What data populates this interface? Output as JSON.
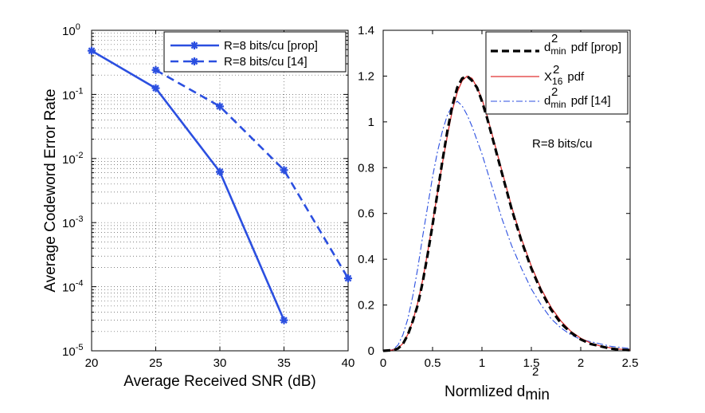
{
  "chart_data": [
    {
      "type": "line",
      "yscale": "log",
      "xlabel": "Average Received SNR (dB)",
      "ylabel": "Average Codeword Error Rate",
      "xlim": [
        20,
        40
      ],
      "ylim": [
        1e-05,
        1
      ],
      "xticks": [
        "20",
        "25",
        "30",
        "35",
        "40"
      ],
      "yticks": [
        {
          "base": "10",
          "exp": "0"
        },
        {
          "base": "10",
          "exp": "-1"
        },
        {
          "base": "10",
          "exp": "-2"
        },
        {
          "base": "10",
          "exp": "-3"
        },
        {
          "base": "10",
          "exp": "-4"
        },
        {
          "base": "10",
          "exp": "-5"
        }
      ],
      "grid": true,
      "legend_position": "top-right",
      "series": [
        {
          "name": "R=8 bits/cu [prop]",
          "style": "solid",
          "color": "#2b4fe0",
          "marker": "asterisk",
          "x": [
            20,
            25,
            30,
            35
          ],
          "y": [
            0.48,
            0.125,
            0.0062,
            3e-05
          ]
        },
        {
          "name": "R=8 bits/cu [14]",
          "style": "dashed",
          "color": "#2b4fe0",
          "marker": "asterisk",
          "x": [
            25,
            30,
            35,
            40
          ],
          "y": [
            0.24,
            0.065,
            0.0066,
            0.000135
          ]
        }
      ]
    },
    {
      "type": "line",
      "xlabel": {
        "prefix": "Normlized d",
        "sup": "2",
        "sub": "min"
      },
      "ylabel": "",
      "xlim": [
        0,
        2.5
      ],
      "ylim": [
        0,
        1.4
      ],
      "xticks": [
        "0",
        "0.5",
        "1",
        "1.5",
        "2",
        "2.5"
      ],
      "yticks": [
        "0",
        "0.2",
        "0.4",
        "0.6",
        "0.8",
        "1",
        "1.2",
        "1.4"
      ],
      "grid": false,
      "legend_position": "top-right",
      "annotation": "R=8 bits/cu",
      "series": [
        {
          "name": {
            "main": "d",
            "sup": "2",
            "sub": "min",
            "tail": "pdf [prop]"
          },
          "style": "dashed-thick",
          "color": "#000000",
          "x": [
            0,
            0.1,
            0.15,
            0.2,
            0.25,
            0.3,
            0.35,
            0.4,
            0.45,
            0.5,
            0.55,
            0.6,
            0.65,
            0.7,
            0.75,
            0.8,
            0.85,
            0.9,
            0.95,
            1.0,
            1.05,
            1.1,
            1.15,
            1.2,
            1.3,
            1.4,
            1.5,
            1.6,
            1.7,
            1.8,
            1.9,
            2.0,
            2.1,
            2.2,
            2.3,
            2.4,
            2.5
          ],
          "y": [
            0,
            0.003,
            0.01,
            0.03,
            0.07,
            0.13,
            0.2,
            0.3,
            0.42,
            0.55,
            0.69,
            0.83,
            0.96,
            1.07,
            1.15,
            1.19,
            1.2,
            1.18,
            1.15,
            1.09,
            1.02,
            0.94,
            0.86,
            0.78,
            0.62,
            0.48,
            0.36,
            0.26,
            0.18,
            0.12,
            0.08,
            0.05,
            0.03,
            0.02,
            0.01,
            0.005,
            0.003
          ]
        },
        {
          "name": {
            "main": "X",
            "sup": "2",
            "sub": "16",
            "tail": "pdf"
          },
          "style": "solid",
          "color": "#e03030",
          "x": [
            0,
            0.1,
            0.15,
            0.2,
            0.25,
            0.3,
            0.35,
            0.4,
            0.45,
            0.5,
            0.55,
            0.6,
            0.65,
            0.7,
            0.75,
            0.8,
            0.85,
            0.9,
            0.95,
            1.0,
            1.05,
            1.1,
            1.15,
            1.2,
            1.3,
            1.4,
            1.5,
            1.6,
            1.7,
            1.8,
            1.9,
            2.0,
            2.1,
            2.2,
            2.3,
            2.4,
            2.5
          ],
          "y": [
            0,
            0.004,
            0.012,
            0.032,
            0.072,
            0.13,
            0.21,
            0.31,
            0.43,
            0.56,
            0.69,
            0.82,
            0.94,
            1.05,
            1.13,
            1.18,
            1.2,
            1.19,
            1.15,
            1.1,
            1.03,
            0.95,
            0.87,
            0.79,
            0.63,
            0.49,
            0.37,
            0.27,
            0.19,
            0.13,
            0.085,
            0.055,
            0.034,
            0.021,
            0.013,
            0.007,
            0.004
          ]
        },
        {
          "name": {
            "main": "d",
            "sup": "2",
            "sub": "min",
            "tail": "pdf [14]"
          },
          "style": "dashdot",
          "color": "#2b4fe0",
          "x": [
            0,
            0.1,
            0.15,
            0.2,
            0.25,
            0.3,
            0.35,
            0.4,
            0.45,
            0.5,
            0.55,
            0.6,
            0.65,
            0.7,
            0.75,
            0.8,
            0.85,
            0.9,
            0.95,
            1.0,
            1.05,
            1.1,
            1.15,
            1.2,
            1.3,
            1.4,
            1.5,
            1.6,
            1.7,
            1.8,
            1.9,
            2.0,
            2.1,
            2.2,
            2.3,
            2.4,
            2.5
          ],
          "y": [
            0,
            0.006,
            0.025,
            0.07,
            0.14,
            0.24,
            0.36,
            0.5,
            0.63,
            0.76,
            0.87,
            0.96,
            1.03,
            1.07,
            1.09,
            1.07,
            1.03,
            0.98,
            0.92,
            0.86,
            0.79,
            0.72,
            0.65,
            0.58,
            0.46,
            0.36,
            0.27,
            0.2,
            0.14,
            0.1,
            0.07,
            0.05,
            0.04,
            0.03,
            0.02,
            0.015,
            0.01
          ]
        }
      ]
    }
  ]
}
